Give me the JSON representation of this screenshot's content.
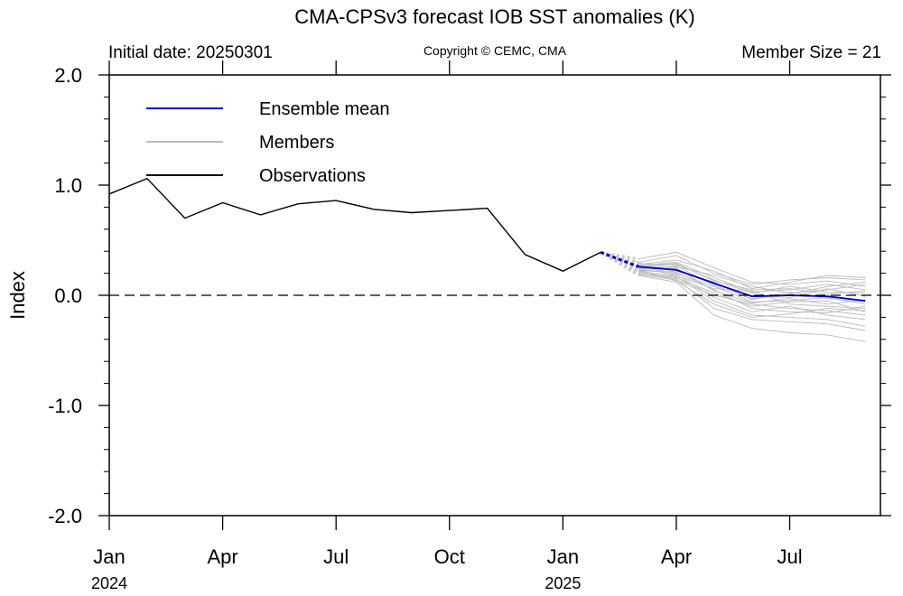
{
  "chart_data": {
    "type": "line",
    "title": "CMA-CPSv3 forecast IOB SST anomalies (K)",
    "initial_date_label": "Initial date: 20250301",
    "copyright_label": "Copyright © CEMC, CMA",
    "member_size_label": "Member Size = 21",
    "ylabel": "Index",
    "ylim": [
      -2.0,
      2.0
    ],
    "yticks": [
      {
        "value": 2.0,
        "label": "2.0"
      },
      {
        "value": 1.0,
        "label": "1.0"
      },
      {
        "value": 0.0,
        "label": "0.0"
      },
      {
        "value": -1.0,
        "label": "-1.0"
      },
      {
        "value": -2.0,
        "label": "-2.0"
      }
    ],
    "xlim": [
      "2024-01",
      "2025-09"
    ],
    "xticks": [
      {
        "date": "2024-01",
        "label": "Jan",
        "year": "2024"
      },
      {
        "date": "2024-04",
        "label": "Apr",
        "year": ""
      },
      {
        "date": "2024-07",
        "label": "Jul",
        "year": ""
      },
      {
        "date": "2024-10",
        "label": "Oct",
        "year": ""
      },
      {
        "date": "2025-01",
        "label": "Jan",
        "year": "2025"
      },
      {
        "date": "2025-04",
        "label": "Apr",
        "year": ""
      },
      {
        "date": "2025-07",
        "label": "Jul",
        "year": ""
      }
    ],
    "zero_line": "dashed",
    "legend": {
      "placement": "top-left",
      "entries": [
        {
          "name": "Ensemble mean",
          "color": "#0000cc"
        },
        {
          "name": "Members",
          "color": "#bbbbbb"
        },
        {
          "name": "Observations",
          "color": "#000000"
        }
      ]
    },
    "series": {
      "observations": {
        "name": "Observations",
        "color": "#000000",
        "x": [
          "2024-01",
          "2024-02",
          "2024-03",
          "2024-04",
          "2024-05",
          "2024-06",
          "2024-07",
          "2024-08",
          "2024-09",
          "2024-10",
          "2024-11",
          "2024-12",
          "2025-01",
          "2025-02"
        ],
        "y": [
          0.92,
          1.06,
          0.7,
          0.84,
          0.73,
          0.83,
          0.86,
          0.78,
          0.75,
          0.77,
          0.79,
          0.37,
          0.22,
          0.39
        ]
      },
      "ensemble_mean": {
        "name": "Ensemble mean",
        "color": "#0000cc",
        "x": [
          "2025-03",
          "2025-04",
          "2025-05",
          "2025-06",
          "2025-07",
          "2025-08",
          "2025-09"
        ],
        "y": [
          0.26,
          0.23,
          0.11,
          -0.01,
          0.0,
          -0.01,
          -0.05
        ]
      },
      "members": {
        "name": "Members",
        "color": "#bbbbbb",
        "x": [
          "2025-03",
          "2025-04",
          "2025-05",
          "2025-06",
          "2025-07",
          "2025-08",
          "2025-09"
        ],
        "values": [
          [
            0.33,
            0.39,
            0.25,
            0.12,
            0.1,
            0.13,
            0.08
          ],
          [
            0.3,
            0.36,
            0.2,
            0.1,
            0.14,
            0.16,
            0.14
          ],
          [
            0.28,
            0.32,
            0.22,
            0.06,
            0.12,
            0.18,
            0.16
          ],
          [
            0.27,
            0.3,
            0.16,
            0.03,
            0.05,
            0.1,
            0.05
          ],
          [
            0.26,
            0.28,
            0.14,
            0.02,
            0.08,
            0.03,
            0.02
          ],
          [
            0.25,
            0.26,
            0.18,
            0.08,
            0.02,
            0.05,
            0.1
          ],
          [
            0.24,
            0.24,
            0.1,
            0.0,
            -0.02,
            0.06,
            -0.01
          ],
          [
            0.22,
            0.22,
            0.12,
            -0.04,
            0.03,
            -0.03,
            -0.06
          ],
          [
            0.23,
            0.2,
            0.08,
            -0.06,
            -0.05,
            -0.02,
            -0.08
          ],
          [
            0.21,
            0.18,
            0.06,
            0.04,
            -0.08,
            -0.1,
            -0.12
          ],
          [
            0.2,
            0.16,
            0.02,
            -0.1,
            -0.06,
            -0.05,
            -0.15
          ],
          [
            0.19,
            0.14,
            0.0,
            -0.08,
            -0.12,
            -0.14,
            -0.18
          ],
          [
            0.25,
            0.21,
            0.05,
            -0.12,
            -0.15,
            -0.16,
            -0.1
          ],
          [
            0.24,
            0.19,
            -0.02,
            -0.15,
            -0.1,
            -0.18,
            -0.22
          ],
          [
            0.22,
            0.17,
            -0.05,
            -0.18,
            -0.2,
            -0.22,
            -0.28
          ],
          [
            0.2,
            0.15,
            -0.12,
            -0.22,
            -0.24,
            -0.26,
            -0.32
          ],
          [
            0.18,
            0.12,
            -0.18,
            -0.3,
            -0.34,
            -0.36,
            -0.42
          ],
          [
            0.27,
            0.29,
            0.13,
            0.05,
            0.06,
            0.01,
            0.04
          ],
          [
            0.29,
            0.27,
            0.09,
            -0.03,
            0.01,
            0.08,
            0.12
          ],
          [
            0.26,
            0.25,
            0.04,
            -0.07,
            -0.03,
            -0.08,
            -0.04
          ],
          [
            0.23,
            0.13,
            -0.08,
            -0.2,
            -0.17,
            -0.12,
            -0.14
          ]
        ]
      }
    }
  }
}
